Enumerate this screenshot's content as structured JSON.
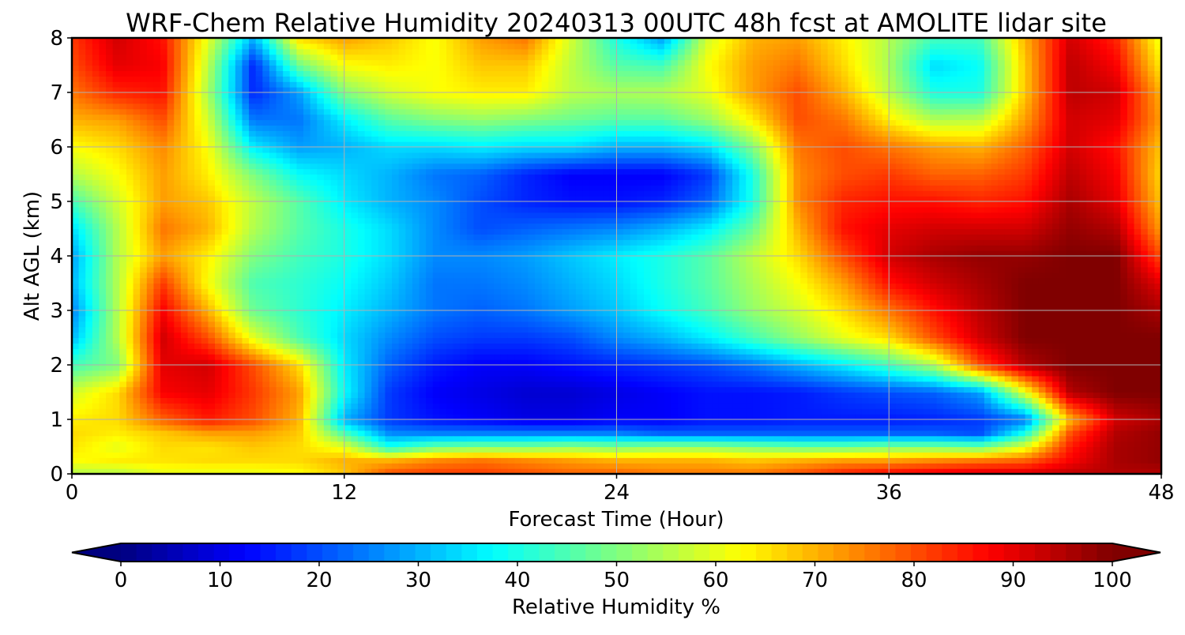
{
  "chart_data": {
    "type": "heatmap",
    "title": "WRF-Chem Relative Humidity 20240313 00UTC 48h fcst at AMOLITE lidar site",
    "xlabel": "Forecast Time (Hour)",
    "ylabel": "Alt AGL (km)",
    "xlim": [
      0,
      48
    ],
    "ylim": [
      0,
      8
    ],
    "x_ticks": [
      0,
      12,
      24,
      36,
      48
    ],
    "y_ticks": [
      0,
      1,
      2,
      3,
      4,
      5,
      6,
      7,
      8
    ],
    "grid": true,
    "colormap": "jet",
    "colorbar": {
      "label": "Relative Humidity %",
      "orientation": "horizontal",
      "position": "bottom",
      "extend": "both",
      "range": [
        0,
        100
      ],
      "ticks": [
        0,
        10,
        20,
        30,
        40,
        50,
        60,
        70,
        80,
        90,
        100
      ]
    },
    "x": [
      0,
      2,
      4,
      6,
      8,
      10,
      12,
      14,
      16,
      18,
      20,
      22,
      24,
      26,
      28,
      30,
      32,
      34,
      36,
      38,
      40,
      42,
      44,
      46,
      48
    ],
    "y": [
      0,
      0.25,
      0.5,
      0.75,
      1,
      1.5,
      2,
      2.5,
      3,
      3.5,
      4,
      4.5,
      5,
      5.5,
      6,
      6.5,
      7,
      7.5,
      8
    ],
    "z": [
      [
        55,
        55,
        60,
        60,
        60,
        62,
        68,
        80,
        82,
        82,
        80,
        78,
        78,
        76,
        76,
        76,
        80,
        85,
        88,
        90,
        92,
        92,
        94,
        95,
        95
      ],
      [
        62,
        64,
        65,
        66,
        66,
        66,
        70,
        70,
        74,
        76,
        74,
        72,
        70,
        70,
        70,
        68,
        70,
        72,
        72,
        74,
        76,
        78,
        88,
        96,
        98
      ],
      [
        65,
        60,
        66,
        65,
        68,
        66,
        60,
        40,
        48,
        50,
        50,
        52,
        50,
        52,
        52,
        50,
        48,
        48,
        50,
        50,
        48,
        60,
        85,
        96,
        98
      ],
      [
        66,
        64,
        68,
        72,
        72,
        68,
        45,
        26,
        25,
        25,
        25,
        25,
        25,
        22,
        22,
        22,
        22,
        22,
        22,
        22,
        20,
        40,
        80,
        95,
        98
      ],
      [
        64,
        66,
        78,
        85,
        80,
        70,
        30,
        18,
        14,
        12,
        10,
        10,
        12,
        12,
        14,
        14,
        15,
        15,
        15,
        16,
        18,
        24,
        70,
        92,
        96
      ],
      [
        58,
        66,
        88,
        90,
        82,
        72,
        38,
        18,
        12,
        10,
        8,
        8,
        10,
        12,
        14,
        14,
        15,
        18,
        20,
        22,
        28,
        60,
        95,
        100,
        100
      ],
      [
        44,
        50,
        90,
        92,
        80,
        66,
        36,
        22,
        15,
        12,
        12,
        14,
        16,
        18,
        20,
        24,
        30,
        36,
        44,
        55,
        80,
        95,
        100,
        100,
        100
      ],
      [
        30,
        55,
        92,
        80,
        60,
        45,
        34,
        26,
        20,
        18,
        18,
        20,
        26,
        30,
        36,
        44,
        52,
        60,
        66,
        80,
        92,
        100,
        100,
        100,
        100
      ],
      [
        25,
        55,
        88,
        70,
        48,
        42,
        36,
        30,
        24,
        22,
        24,
        28,
        32,
        38,
        44,
        52,
        58,
        66,
        76,
        86,
        94,
        100,
        100,
        100,
        96
      ],
      [
        30,
        55,
        82,
        62,
        45,
        42,
        38,
        32,
        24,
        24,
        26,
        30,
        34,
        40,
        46,
        54,
        62,
        72,
        86,
        92,
        96,
        100,
        100,
        100,
        90
      ],
      [
        28,
        55,
        72,
        64,
        50,
        44,
        40,
        34,
        26,
        26,
        28,
        32,
        36,
        40,
        46,
        56,
        66,
        80,
        92,
        96,
        98,
        98,
        100,
        100,
        80
      ],
      [
        34,
        55,
        76,
        70,
        55,
        46,
        40,
        34,
        26,
        20,
        22,
        24,
        26,
        30,
        36,
        48,
        70,
        86,
        90,
        92,
        92,
        92,
        98,
        95,
        72
      ],
      [
        44,
        58,
        72,
        68,
        56,
        46,
        36,
        30,
        26,
        20,
        16,
        14,
        14,
        16,
        22,
        40,
        74,
        84,
        86,
        86,
        84,
        86,
        96,
        90,
        68
      ],
      [
        55,
        62,
        72,
        64,
        50,
        38,
        34,
        30,
        24,
        22,
        16,
        12,
        12,
        12,
        18,
        40,
        74,
        80,
        82,
        78,
        78,
        82,
        94,
        88,
        66
      ],
      [
        62,
        66,
        74,
        62,
        36,
        28,
        30,
        34,
        34,
        36,
        34,
        34,
        30,
        30,
        34,
        50,
        76,
        80,
        76,
        72,
        70,
        78,
        92,
        86,
        68
      ],
      [
        70,
        72,
        80,
        58,
        24,
        24,
        36,
        46,
        50,
        52,
        50,
        48,
        46,
        46,
        52,
        64,
        80,
        76,
        64,
        55,
        56,
        72,
        92,
        90,
        72
      ],
      [
        76,
        84,
        86,
        54,
        16,
        28,
        50,
        58,
        62,
        64,
        64,
        56,
        54,
        55,
        60,
        72,
        80,
        70,
        56,
        40,
        40,
        68,
        94,
        92,
        70
      ],
      [
        80,
        90,
        88,
        56,
        16,
        48,
        62,
        64,
        62,
        68,
        68,
        56,
        46,
        44,
        62,
        72,
        76,
        66,
        54,
        34,
        38,
        68,
        94,
        88,
        64
      ],
      [
        82,
        92,
        86,
        60,
        30,
        66,
        72,
        68,
        62,
        72,
        76,
        58,
        40,
        28,
        58,
        70,
        72,
        64,
        55,
        44,
        44,
        70,
        92,
        84,
        60
      ]
    ]
  }
}
